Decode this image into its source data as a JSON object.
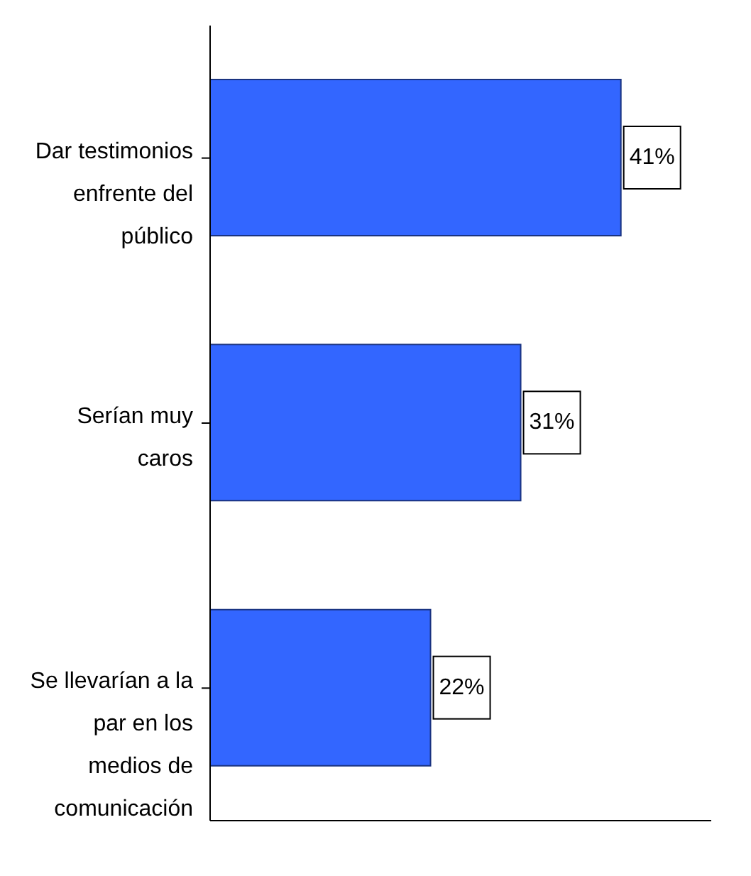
{
  "chart_data": {
    "type": "bar",
    "orientation": "horizontal",
    "categories": [
      "Dar testimonios enfrente del público",
      "Serían muy caros",
      "Se llevarían a la par en los medios de comunicación"
    ],
    "values": [
      41,
      31,
      22
    ],
    "value_labels": [
      "41%",
      "31%",
      "22%"
    ],
    "color": "#3366ff",
    "tick_labels": "y"
  }
}
